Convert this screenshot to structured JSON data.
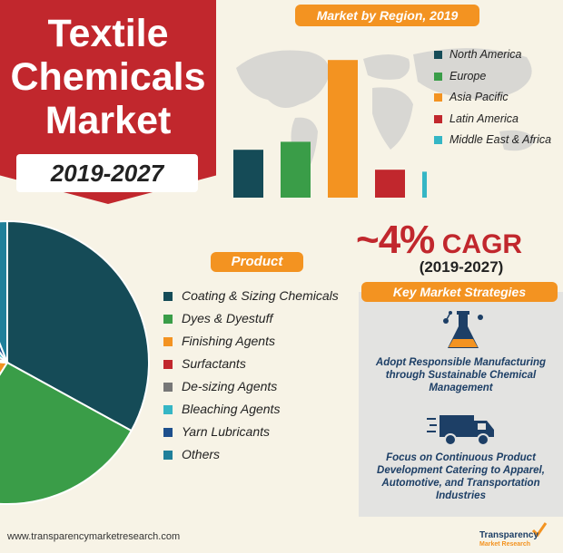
{
  "title": {
    "line1": "Textile",
    "line2": "Chemicals",
    "line3": "Market",
    "years": "2019-2027"
  },
  "region": {
    "heading": "Market by Region, 2019"
  },
  "product": {
    "heading": "Product"
  },
  "cagr": {
    "value": "~4%",
    "label": "CAGR",
    "period": "(2019-2027)"
  },
  "strategies": {
    "heading": "Key Market Strategies",
    "item1": "Adopt Responsible Manufacturing through Sustainable Chemical Management",
    "item2": "Focus on Continuous Product Development Catering to Apparel, Automotive, and Transportation Industries"
  },
  "footer": {
    "url": "www.transparencymarketresearch.com",
    "brand_line1": "Transparency",
    "brand_line2": "Market Research"
  },
  "colors": {
    "north_america": "#154b57",
    "europe": "#3a9d48",
    "asia_pacific": "#f39321",
    "latin_america": "#c1272d",
    "mea": "#35b6c5",
    "gray": "#777777",
    "navy": "#1d4f8c",
    "teal": "#1f7f9a"
  },
  "chart_data": [
    {
      "type": "bar",
      "title": "Market by Region, 2019",
      "categories": [
        "North America",
        "Europe",
        "Asia Pacific",
        "Latin America",
        "Middle East & Africa"
      ],
      "values": [
        24,
        28,
        69,
        14,
        13
      ],
      "colors": [
        "#154b57",
        "#3a9d48",
        "#f39321",
        "#c1272d",
        "#35b6c5"
      ],
      "legend": "right"
    },
    {
      "type": "pie",
      "title": "Product",
      "categories": [
        "Coating & Sizing Chemicals",
        "Dyes & Dyestuff",
        "Finishing Agents",
        "Surfactants",
        "De-sizing Agents",
        "Bleaching Agents",
        "Yarn Lubricants",
        "Others"
      ],
      "values": [
        33,
        26,
        17,
        4,
        5,
        5,
        4,
        6
      ],
      "colors": [
        "#154b57",
        "#3a9d48",
        "#f39321",
        "#c1272d",
        "#777777",
        "#35b6c5",
        "#1d4f8c",
        "#1f7f9a"
      ],
      "legend": "right"
    }
  ]
}
